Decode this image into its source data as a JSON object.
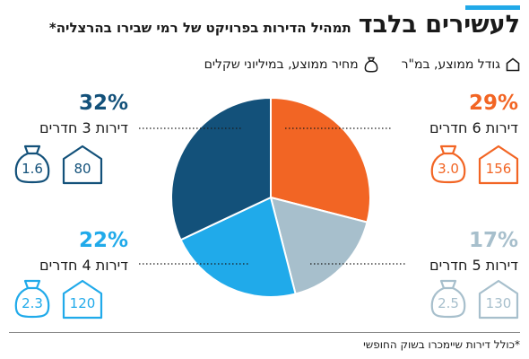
{
  "title": "לעשירים בלבד",
  "subtitle": "תמהיל הדירות בפרויקט של רמי שבירו בהרצליה*",
  "legend": {
    "size_label": "גודל ממוצע, במ\"ר",
    "price_label": "מחיר ממוצע, במיליוני שקלים"
  },
  "footnote": "*כולל דירות שיימכרו בשוק החופשי",
  "colors": {
    "orange": "#f26524",
    "lightgray": "#a7bfcc",
    "lightblue": "#20aaea",
    "darkblue": "#13517a",
    "accent": "#21a9e8"
  },
  "chart_data": {
    "type": "pie",
    "slices": [
      {
        "label": "דירות 6 חדרים",
        "percent_label": "29%",
        "value": 29,
        "size": "156",
        "price": "3.0",
        "color": "#f26524"
      },
      {
        "label": "דירות 5 חדרים",
        "percent_label": "17%",
        "value": 17,
        "size": "130",
        "price": "2.5",
        "color": "#a7bfcc"
      },
      {
        "label": "דירות 4 חדרים",
        "percent_label": "22%",
        "value": 22,
        "size": "120",
        "price": "2.3",
        "color": "#20aaea"
      },
      {
        "label": "דירות 3 חדרים",
        "percent_label": "32%",
        "value": 32,
        "size": "80",
        "price": "1.6",
        "color": "#13517a"
      }
    ]
  }
}
